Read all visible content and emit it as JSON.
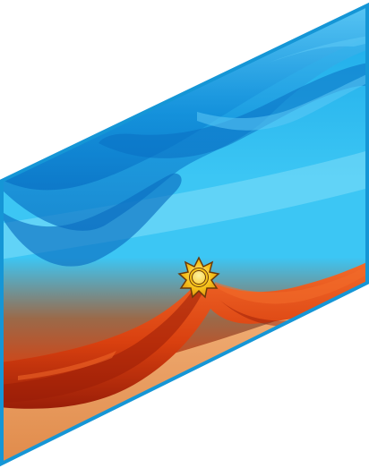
{
  "scene": {
    "kind": "parallelogram-banner",
    "emblem": "sun-ring-icon",
    "palette": {
      "frame_blue": "#1596d6",
      "sky_top": "#1aa8e8",
      "sky_mid": "#3cc6f4",
      "sky_light": "#8fe3fb",
      "drape_blue_dark": "#0a6fc2",
      "drape_blue_mid": "#1492dc",
      "drape_blue_light": "#5cc8f5",
      "warm_transition": "#9a6a4a",
      "drape_red_dark": "#9a1e08",
      "drape_red_mid": "#d9400f",
      "drape_red_light": "#f26a2a",
      "orange_base": "#e08a4a",
      "orange_light": "#f2b27a",
      "emblem_gold": "#f6c21a",
      "emblem_dark": "#6b3a08"
    }
  }
}
